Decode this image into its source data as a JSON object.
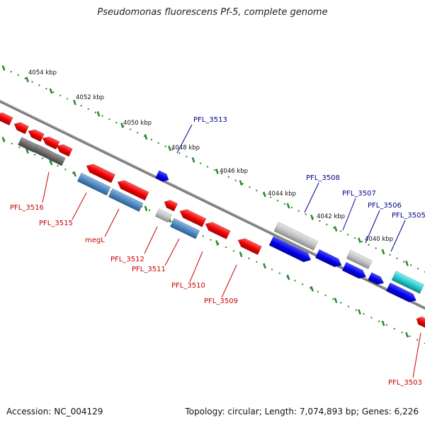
{
  "title": "Pseudomonas fluorescens Pf-5, complete genome",
  "footer": {
    "accession": "Accession: NC_004129",
    "summary": "Topology: circular; Length: 7,074,893 bp; Genes: 6,226"
  },
  "ruler": {
    "ticks": [
      "4054 kbp",
      "4052 kbp",
      "4050 kbp",
      "4048 kbp",
      "4046 kbp",
      "4044 kbp",
      "4042 kbp",
      "4040 kbp"
    ]
  },
  "genes": [
    {
      "name": "PFL_3516",
      "strand": "reverse",
      "category": "red"
    },
    {
      "name": "PFL_3515",
      "strand": "reverse",
      "category": "red"
    },
    {
      "name": "megL",
      "strand": "reverse",
      "category": "red"
    },
    {
      "name": "PFL_3513",
      "strand": "forward",
      "category": "blue"
    },
    {
      "name": "PFL_3512",
      "strand": "reverse",
      "category": "red"
    },
    {
      "name": "PFL_3511",
      "strand": "reverse",
      "category": "red"
    },
    {
      "name": "PFL_3510",
      "strand": "reverse",
      "category": "red"
    },
    {
      "name": "PFL_3509",
      "strand": "reverse",
      "category": "red"
    },
    {
      "name": "PFL_3508",
      "strand": "forward",
      "category": "blue"
    },
    {
      "name": "PFL_3507",
      "strand": "forward",
      "category": "blue"
    },
    {
      "name": "PFL_3506",
      "strand": "forward",
      "category": "blue"
    },
    {
      "name": "PFL_3505",
      "strand": "forward",
      "category": "blue"
    },
    {
      "name": "PFL_3503",
      "strand": "reverse",
      "category": "red"
    }
  ],
  "colors": {
    "reverse_label": "#cc0000",
    "forward_label": "#00008b",
    "backbone": "#777777",
    "ruler": "#2a8a2a"
  }
}
